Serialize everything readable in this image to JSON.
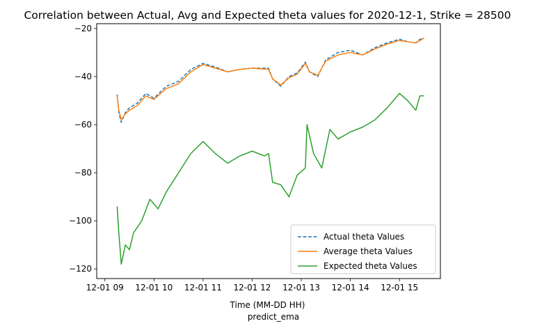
{
  "chart_data": {
    "type": "line",
    "title": "Correlation between Actual, Avg and Expected theta values for 2020-12-1, Strike = 28500",
    "xlabel": "Time (MM-DD HH)",
    "caption": "predict_ema",
    "xlim": [
      "2020-12-01 08:50",
      "2020-12-01 15:50"
    ],
    "ylim": [
      -124,
      -18
    ],
    "x_ticks": [
      {
        "label": "12-01 09",
        "value": "2020-12-01 09:00"
      },
      {
        "label": "12-01 10",
        "value": "2020-12-01 10:00"
      },
      {
        "label": "12-01 11",
        "value": "2020-12-01 11:00"
      },
      {
        "label": "12-01 12",
        "value": "2020-12-01 12:00"
      },
      {
        "label": "12-01 13",
        "value": "2020-12-01 13:00"
      },
      {
        "label": "12-01 14",
        "value": "2020-12-01 14:00"
      },
      {
        "label": "12-01 15",
        "value": "2020-12-01 15:00"
      }
    ],
    "y_ticks": [
      -20,
      -40,
      -60,
      -80,
      -100,
      -120
    ],
    "grid": false,
    "legend_position": "lower-right",
    "series": [
      {
        "name": "Actual theta Values",
        "color": "#1f77b4",
        "style": "dashed",
        "points": [
          [
            "2020-12-01 09:15",
            -47.5
          ],
          [
            "2020-12-01 09:17",
            -55
          ],
          [
            "2020-12-01 09:20",
            -59
          ],
          [
            "2020-12-01 09:25",
            -55
          ],
          [
            "2020-12-01 09:30",
            -53
          ],
          [
            "2020-12-01 09:40",
            -51
          ],
          [
            "2020-12-01 09:50",
            -47
          ],
          [
            "2020-12-01 10:00",
            -49
          ],
          [
            "2020-12-01 10:15",
            -44
          ],
          [
            "2020-12-01 10:30",
            -42
          ],
          [
            "2020-12-01 10:45",
            -37
          ],
          [
            "2020-12-01 11:00",
            -34.5
          ],
          [
            "2020-12-01 11:15",
            -36
          ],
          [
            "2020-12-01 11:30",
            -38
          ],
          [
            "2020-12-01 11:45",
            -37
          ],
          [
            "2020-12-01 12:00",
            -36.5
          ],
          [
            "2020-12-01 12:20",
            -36.5
          ],
          [
            "2020-12-01 12:25",
            -41
          ],
          [
            "2020-12-01 12:35",
            -44
          ],
          [
            "2020-12-01 12:45",
            -40
          ],
          [
            "2020-12-01 12:55",
            -38.5
          ],
          [
            "2020-12-01 13:05",
            -34
          ],
          [
            "2020-12-01 13:10",
            -38
          ],
          [
            "2020-12-01 13:20",
            -40
          ],
          [
            "2020-12-01 13:30",
            -33
          ],
          [
            "2020-12-01 13:45",
            -30
          ],
          [
            "2020-12-01 14:00",
            -29
          ],
          [
            "2020-12-01 14:15",
            -31
          ],
          [
            "2020-12-01 14:30",
            -28
          ],
          [
            "2020-12-01 14:45",
            -26
          ],
          [
            "2020-12-01 15:00",
            -24.5
          ],
          [
            "2020-12-01 15:10",
            -25.5
          ],
          [
            "2020-12-01 15:20",
            -26
          ],
          [
            "2020-12-01 15:25",
            -24.5
          ],
          [
            "2020-12-01 15:30",
            -24
          ]
        ]
      },
      {
        "name": "Average theta Values",
        "color": "#ff7f0e",
        "style": "solid",
        "points": [
          [
            "2020-12-01 09:15",
            -48
          ],
          [
            "2020-12-01 09:17",
            -54
          ],
          [
            "2020-12-01 09:20",
            -58
          ],
          [
            "2020-12-01 09:25",
            -55.5
          ],
          [
            "2020-12-01 09:30",
            -54
          ],
          [
            "2020-12-01 09:40",
            -52
          ],
          [
            "2020-12-01 09:50",
            -48
          ],
          [
            "2020-12-01 10:00",
            -49.5
          ],
          [
            "2020-12-01 10:15",
            -45
          ],
          [
            "2020-12-01 10:30",
            -43
          ],
          [
            "2020-12-01 10:45",
            -38
          ],
          [
            "2020-12-01 11:00",
            -35
          ],
          [
            "2020-12-01 11:15",
            -36.5
          ],
          [
            "2020-12-01 11:30",
            -38
          ],
          [
            "2020-12-01 11:45",
            -37
          ],
          [
            "2020-12-01 12:00",
            -36.5
          ],
          [
            "2020-12-01 12:20",
            -37
          ],
          [
            "2020-12-01 12:25",
            -41
          ],
          [
            "2020-12-01 12:35",
            -43.5
          ],
          [
            "2020-12-01 12:45",
            -40.5
          ],
          [
            "2020-12-01 12:55",
            -39
          ],
          [
            "2020-12-01 13:05",
            -34.5
          ],
          [
            "2020-12-01 13:10",
            -38
          ],
          [
            "2020-12-01 13:20",
            -39.5
          ],
          [
            "2020-12-01 13:30",
            -33.5
          ],
          [
            "2020-12-01 13:45",
            -31
          ],
          [
            "2020-12-01 14:00",
            -30
          ],
          [
            "2020-12-01 14:15",
            -31
          ],
          [
            "2020-12-01 14:30",
            -28.5
          ],
          [
            "2020-12-01 14:45",
            -26.5
          ],
          [
            "2020-12-01 15:00",
            -25
          ],
          [
            "2020-12-01 15:10",
            -25.5
          ],
          [
            "2020-12-01 15:20",
            -26
          ],
          [
            "2020-12-01 15:25",
            -25
          ],
          [
            "2020-12-01 15:30",
            -24
          ]
        ]
      },
      {
        "name": "Expected theta Values",
        "color": "#2ca02c",
        "style": "solid",
        "points": [
          [
            "2020-12-01 09:15",
            -94
          ],
          [
            "2020-12-01 09:17",
            -105
          ],
          [
            "2020-12-01 09:20",
            -118
          ],
          [
            "2020-12-01 09:25",
            -110
          ],
          [
            "2020-12-01 09:30",
            -112
          ],
          [
            "2020-12-01 09:35",
            -105
          ],
          [
            "2020-12-01 09:45",
            -100
          ],
          [
            "2020-12-01 09:55",
            -91
          ],
          [
            "2020-12-01 10:05",
            -95
          ],
          [
            "2020-12-01 10:15",
            -88
          ],
          [
            "2020-12-01 10:30",
            -80
          ],
          [
            "2020-12-01 10:45",
            -72
          ],
          [
            "2020-12-01 11:00",
            -67
          ],
          [
            "2020-12-01 11:15",
            -72
          ],
          [
            "2020-12-01 11:30",
            -76
          ],
          [
            "2020-12-01 11:45",
            -73
          ],
          [
            "2020-12-01 12:00",
            -71
          ],
          [
            "2020-12-01 12:15",
            -73
          ],
          [
            "2020-12-01 12:20",
            -72
          ],
          [
            "2020-12-01 12:25",
            -84
          ],
          [
            "2020-12-01 12:35",
            -85
          ],
          [
            "2020-12-01 12:45",
            -90
          ],
          [
            "2020-12-01 12:55",
            -81
          ],
          [
            "2020-12-01 13:05",
            -78
          ],
          [
            "2020-12-01 13:07",
            -60
          ],
          [
            "2020-12-01 13:15",
            -72
          ],
          [
            "2020-12-01 13:25",
            -78
          ],
          [
            "2020-12-01 13:30",
            -70
          ],
          [
            "2020-12-01 13:35",
            -62
          ],
          [
            "2020-12-01 13:45",
            -66
          ],
          [
            "2020-12-01 14:00",
            -63
          ],
          [
            "2020-12-01 14:15",
            -61
          ],
          [
            "2020-12-01 14:30",
            -58
          ],
          [
            "2020-12-01 14:45",
            -53
          ],
          [
            "2020-12-01 15:00",
            -47
          ],
          [
            "2020-12-01 15:10",
            -50
          ],
          [
            "2020-12-01 15:20",
            -54
          ],
          [
            "2020-12-01 15:25",
            -48
          ],
          [
            "2020-12-01 15:30",
            -48
          ]
        ]
      }
    ]
  }
}
